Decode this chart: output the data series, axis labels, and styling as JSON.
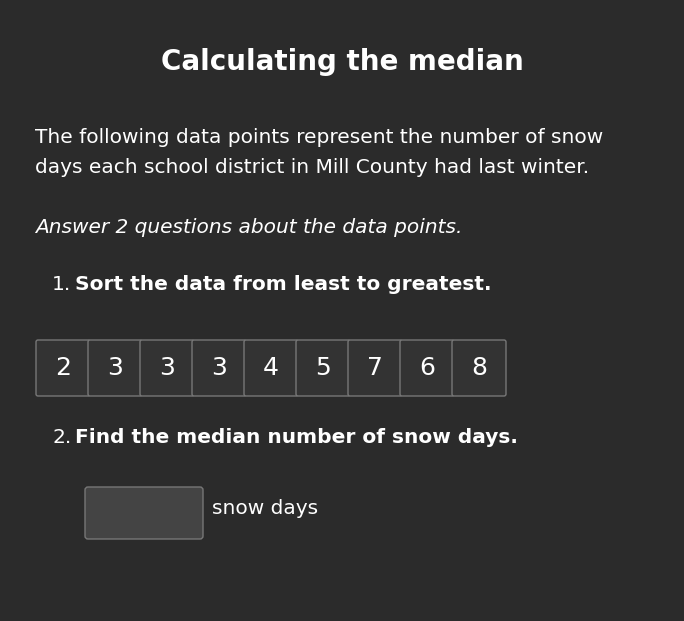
{
  "title": "Calculating the median",
  "background_color": "#2b2b2b",
  "text_color": "#ffffff",
  "title_fontsize": 20,
  "body_text_1_line1": "The following data points represent the number of snow",
  "body_text_1_line2": "days each school district in Mill County had last winter.",
  "body_text_fontsize": 14.5,
  "italic_text": "Answer 2 questions about the data points.",
  "italic_fontsize": 14.5,
  "q1_label": "1.",
  "q1_text": "Sort the data from least to greatest.",
  "q1_fontsize": 14.5,
  "data_values": [
    "2",
    "3",
    "3",
    "3",
    "4",
    "5",
    "7",
    "6",
    "8"
  ],
  "box_bg_color": "#333333",
  "box_border_color": "#777777",
  "data_fontsize": 18,
  "q2_label": "2.",
  "q2_text": "Find the median number of snow days.",
  "q2_fontsize": 14.5,
  "answer_box_color": "#444444",
  "answer_box_border": "#777777",
  "answer_label": "snow days",
  "answer_fontsize": 14.5,
  "figwidth": 6.84,
  "figheight": 6.21,
  "dpi": 100
}
